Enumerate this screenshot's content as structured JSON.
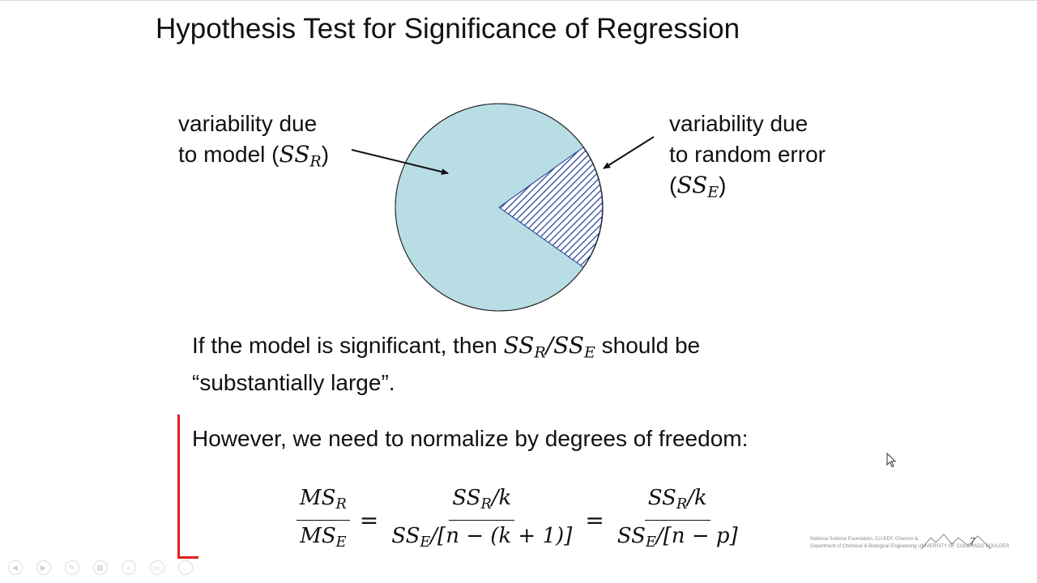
{
  "slide": {
    "title": "Hypothesis Test for Significance of Regression",
    "page_number": "7"
  },
  "callouts": {
    "model": {
      "line1": "variability due",
      "line2_text": "to model (",
      "symbol": "SS",
      "subscript": "R",
      "close": ")"
    },
    "error": {
      "line1": "variability due",
      "line2": "to random error",
      "open": "(",
      "symbol": "SS",
      "subscript": "E",
      "close": ")"
    }
  },
  "pie": {
    "fill_color": "#b8dde4",
    "hatch_color": "#1f3a93",
    "outline_color": "#222222"
  },
  "significance_text": {
    "before": "If the model is significant, then ",
    "ss_r": "SS",
    "sub_r": "R",
    "slash": "/",
    "ss_e": "SS",
    "sub_e": "E",
    "after": " should be",
    "line2": "“substantially large”."
  },
  "normalize_text": "However, we need to normalize by degrees of freedom:",
  "equation": {
    "f1_num": "MS",
    "f1_num_sub": "R",
    "f1_den": "MS",
    "f1_den_sub": "E",
    "eq": "=",
    "f2_num": "SS",
    "f2_num_sub": "R",
    "f2_num_tail": "/k",
    "f2_den": "SS",
    "f2_den_sub": "E",
    "f2_den_tail": "/[n − (k + 1)]",
    "f3_num": "SS",
    "f3_num_sub": "R",
    "f3_num_tail": "/k",
    "f3_den": "SS",
    "f3_den_sub": "E",
    "f3_den_tail": "/[n − p]"
  },
  "footer": {
    "line1": "National Science Foundation, CU-EEF, Chevron &",
    "line2": "Department of Chemical & Biological Engineering  UNIVERSITY OF COLORADO BOULDER"
  },
  "toolbar": {
    "buttons": [
      "previous-slide",
      "next-slide",
      "pen",
      "slide-sorter",
      "zoom",
      "subtitles",
      "more-options"
    ],
    "icons": [
      "◀",
      "▶",
      "✎",
      "▦",
      "⌕",
      "▭",
      "…"
    ]
  },
  "colors": {
    "annotation_red": "#e02020"
  }
}
